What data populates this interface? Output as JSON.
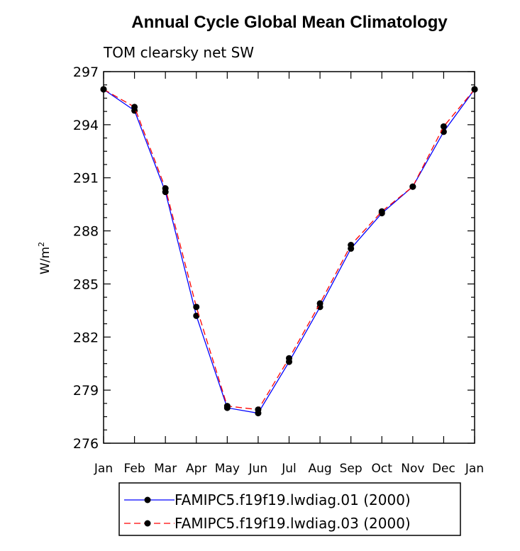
{
  "chart_data": {
    "type": "line",
    "title": "Annual Cycle Global Mean Climatology",
    "subtitle": "TOM clearsky net SW",
    "ylabel": "W/m",
    "ylabel_superscript": "2",
    "xlabel": "",
    "categories": [
      "Jan",
      "Feb",
      "Mar",
      "Apr",
      "May",
      "Jun",
      "Jul",
      "Aug",
      "Sep",
      "Oct",
      "Nov",
      "Dec",
      "Jan"
    ],
    "ylim": [
      276,
      297
    ],
    "yticks": [
      276,
      279,
      282,
      285,
      288,
      291,
      294,
      297
    ],
    "series": [
      {
        "name": "FAMIPC5.f19f19.lwdiag.01 (2000)",
        "color": "#0000ff",
        "dash": "solid",
        "marker": "filled-circle",
        "values": [
          296.0,
          294.8,
          290.2,
          283.2,
          278.0,
          277.7,
          280.6,
          283.7,
          287.0,
          289.0,
          290.5,
          293.6,
          296.0
        ]
      },
      {
        "name": "FAMIPC5.f19f19.lwdiag.03 (2000)",
        "color": "#ff0000",
        "dash": "dashed",
        "marker": "filled-circle",
        "values": [
          296.0,
          295.0,
          290.4,
          283.7,
          278.1,
          277.9,
          280.8,
          283.9,
          287.2,
          289.1,
          290.5,
          293.9,
          296.0
        ]
      }
    ],
    "grid": false,
    "legend_position": "bottom"
  }
}
